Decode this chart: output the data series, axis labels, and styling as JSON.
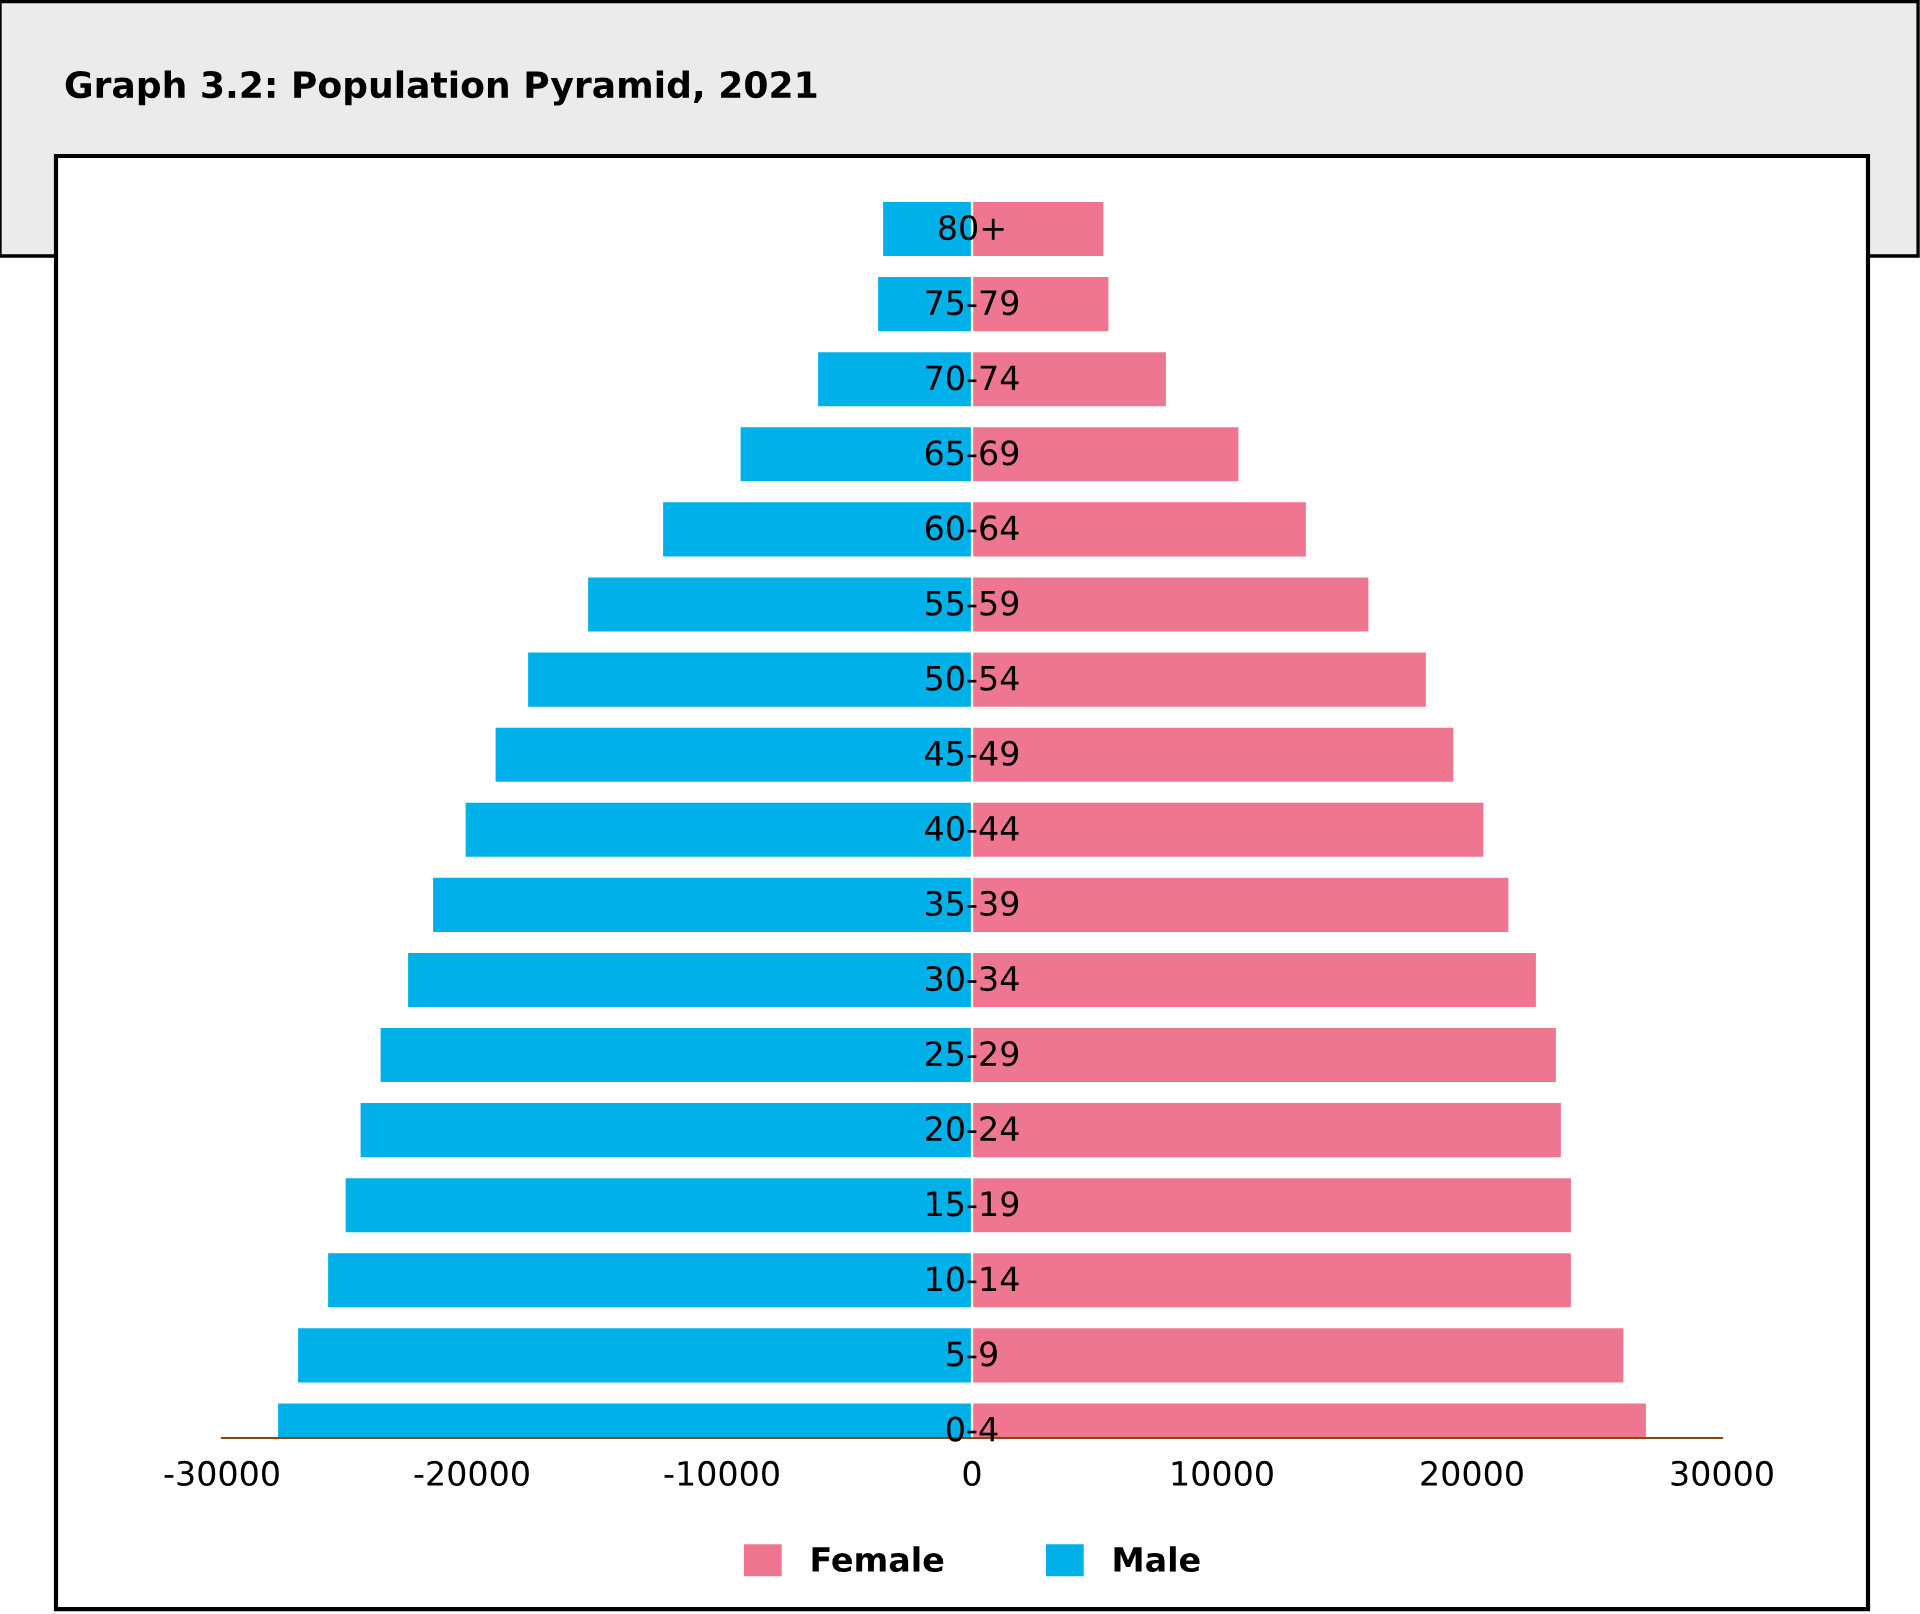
{
  "chart_data": {
    "type": "bar",
    "orientation": "horizontal",
    "title": "Graph 3.2: Population Pyramid, 2021",
    "categories": [
      "80+",
      "75-79",
      "70-74",
      "65-69",
      "60-64",
      "55-59",
      "50-54",
      "45-49",
      "40-44",
      "35-39",
      "30-34",
      "25-29",
      "20-24",
      "15-19",
      "10-14",
      "5-9",
      "0-4"
    ],
    "series": [
      {
        "name": "Female",
        "color": "#ef7690",
        "values": [
          5300,
          5500,
          7800,
          10700,
          13400,
          15900,
          18200,
          19300,
          20500,
          21500,
          22600,
          23400,
          23600,
          24000,
          24000,
          26100,
          27000
        ]
      },
      {
        "name": "Male",
        "color": "#00b0e8",
        "values": [
          -3600,
          -3800,
          -6200,
          -9300,
          -12400,
          -15400,
          -17800,
          -19100,
          -20300,
          -21600,
          -22600,
          -23700,
          -24500,
          -25100,
          -25800,
          -27000,
          -27800
        ]
      }
    ],
    "xlim": [
      -30000,
      30000
    ],
    "xticks": [
      -30000,
      -20000,
      -10000,
      0,
      10000,
      20000,
      30000
    ],
    "stacked": true,
    "grid": false,
    "legend": "bottom"
  }
}
